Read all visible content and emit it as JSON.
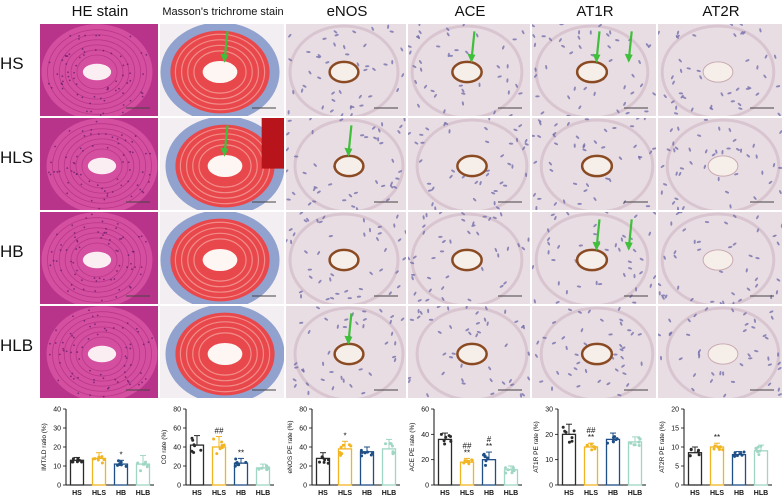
{
  "columns": [
    "HE stain",
    "Masson's trichrome stain",
    "eNOS",
    "ACE",
    "AT1R",
    "AT2R"
  ],
  "rows": [
    "HS",
    "HLS",
    "HB",
    "HLB"
  ],
  "arrows": [
    {
      "row": 0,
      "col": 1
    },
    {
      "row": 0,
      "col": 3
    },
    {
      "row": 0,
      "col": 4
    },
    {
      "row": 0,
      "col": 4,
      "second": true
    },
    {
      "row": 1,
      "col": 1
    },
    {
      "row": 1,
      "col": 2
    },
    {
      "row": 2,
      "col": 4
    },
    {
      "row": 2,
      "col": 4,
      "second": true
    },
    {
      "row": 3,
      "col": 2
    }
  ],
  "colors": {
    "HS": "#2b2b2b",
    "HLS": "#f2b522",
    "HB": "#1e4f86",
    "HLB": "#9fd6c4",
    "arrow": "#3fbf3a",
    "he_bg": "#b8348a",
    "he_ring": "#d54fa0",
    "masson_red": "#e8484c",
    "masson_blue": "#7f94c8",
    "ihc_bg": "#e9dde4",
    "ihc_brown": "#8a4a22"
  },
  "chart_data": [
    {
      "type": "bar",
      "ylabel": "IMT/LD ratio (%)",
      "yticks": [
        0,
        10,
        20,
        30,
        40
      ],
      "ylim": [
        0,
        40
      ],
      "categories": [
        "HS",
        "HLS",
        "HB",
        "HLB"
      ],
      "values": [
        13,
        14,
        11,
        11
      ],
      "errors": [
        1.5,
        3,
        2,
        4.5
      ],
      "annotations": [
        {
          "cat": "HB",
          "lines": [
            "*"
          ]
        }
      ]
    },
    {
      "type": "bar",
      "ylabel": "CO rate (%)",
      "yticks": [
        0,
        20,
        40,
        60,
        80
      ],
      "ylim": [
        0,
        80
      ],
      "categories": [
        "HS",
        "HLS",
        "HB",
        "HLB"
      ],
      "values": [
        42,
        40,
        23,
        18
      ],
      "errors": [
        10,
        11,
        5,
        4
      ],
      "annotations": [
        {
          "cat": "HLS",
          "lines": [
            "##"
          ]
        },
        {
          "cat": "HB",
          "lines": [
            "**"
          ]
        }
      ]
    },
    {
      "type": "bar",
      "ylabel": "eNOS PE rate (%)",
      "yticks": [
        0,
        20,
        40,
        60,
        80
      ],
      "ylim": [
        0,
        80
      ],
      "categories": [
        "HS",
        "HLS",
        "HB",
        "HLB"
      ],
      "values": [
        28,
        38,
        35,
        38
      ],
      "errors": [
        6,
        8,
        5,
        10
      ],
      "annotations": [
        {
          "cat": "HLS",
          "lines": [
            "*"
          ]
        }
      ]
    },
    {
      "type": "bar",
      "ylabel": "ACE PE rate (%)",
      "yticks": [
        0,
        20,
        40,
        60
      ],
      "ylim": [
        0,
        60
      ],
      "categories": [
        "HS",
        "HLS",
        "HB",
        "HLB"
      ],
      "values": [
        36,
        18,
        20,
        12
      ],
      "errors": [
        5,
        3,
        6,
        3
      ],
      "annotations": [
        {
          "cat": "HLS",
          "lines": [
            "##",
            "**"
          ]
        },
        {
          "cat": "HB",
          "lines": [
            "#",
            "**"
          ]
        }
      ]
    },
    {
      "type": "bar",
      "ylabel": "AT1R PE rate (%)",
      "yticks": [
        0,
        10,
        20,
        30
      ],
      "ylim": [
        0,
        30
      ],
      "categories": [
        "HS",
        "HLS",
        "HB",
        "HLB"
      ],
      "values": [
        20,
        15,
        18,
        17
      ],
      "errors": [
        4,
        1.5,
        2.5,
        2
      ],
      "annotations": [
        {
          "cat": "HLS",
          "lines": [
            "##",
            "**"
          ]
        }
      ]
    },
    {
      "type": "bar",
      "ylabel": "AT2R PE rate (%)",
      "yticks": [
        0,
        5,
        10,
        15,
        20
      ],
      "ylim": [
        0,
        20
      ],
      "categories": [
        "HS",
        "HLS",
        "HB",
        "HLB"
      ],
      "values": [
        8.5,
        10,
        8,
        9
      ],
      "errors": [
        1.5,
        1,
        0.8,
        1.5
      ],
      "annotations": [
        {
          "cat": "HLS",
          "lines": [
            "**"
          ]
        }
      ]
    }
  ]
}
